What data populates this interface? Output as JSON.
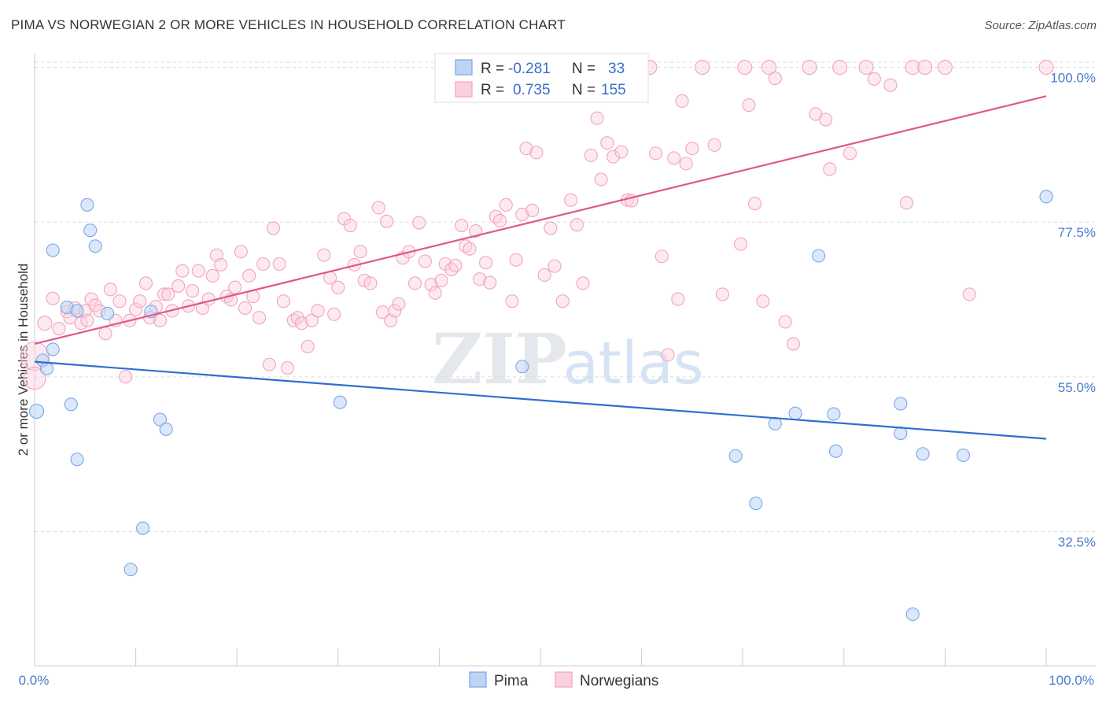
{
  "title": "PIMA VS NORWEGIAN 2 OR MORE VEHICLES IN HOUSEHOLD CORRELATION CHART",
  "source": "Source: ZipAtlas.com",
  "watermark": {
    "zip": "ZIP",
    "atlas": "atlas"
  },
  "colors": {
    "pima": "#7aa6e8",
    "pima_line": "#2f6fcf",
    "norwegian": "#f1a3bd",
    "norwegian_line": "#e0578a",
    "tick": "#4a7bd0"
  },
  "legend": {
    "rows": [
      {
        "r_label": "R =",
        "r_value": "-0.281",
        "n_label": "N =",
        "n_value": "33"
      },
      {
        "r_label": "R =",
        "r_value": "0.735",
        "n_label": "N =",
        "n_value": "155"
      }
    ]
  },
  "bottom_legend": {
    "pima": "Pima",
    "norwegians": "Norwegians"
  },
  "chart_data": {
    "type": "scatter",
    "title": "PIMA VS NORWEGIAN 2 OR MORE VEHICLES IN HOUSEHOLD CORRELATION CHART",
    "xlabel": "",
    "ylabel": "2 or more Vehicles in Household",
    "xlim": [
      0,
      100
    ],
    "ylim": [
      13,
      102
    ],
    "x_tick_labels": [
      "0.0%",
      "100.0%"
    ],
    "y_ticks": [
      32.5,
      55.0,
      77.5,
      100.0
    ],
    "y_tick_labels": [
      "32.5%",
      "55.0%",
      "77.5%",
      "100.0%"
    ],
    "grid": "horizontal dashed",
    "legend_position": "top-center",
    "series": [
      {
        "name": "Pima",
        "trend": {
          "x": [
            0,
            100
          ],
          "y": [
            57.2,
            46.0
          ]
        },
        "points": [
          [
            0.2,
            50.0,
            9
          ],
          [
            0.8,
            57.4,
            8
          ],
          [
            1.8,
            59.0,
            8
          ],
          [
            1.2,
            56.2,
            8
          ],
          [
            3.2,
            65.1,
            8
          ],
          [
            3.6,
            51.0,
            8
          ],
          [
            4.2,
            64.6,
            8
          ],
          [
            4.2,
            43.0,
            8
          ],
          [
            5.2,
            80.0,
            8
          ],
          [
            5.5,
            76.3,
            8
          ],
          [
            6.0,
            74.0,
            8
          ],
          [
            1.8,
            73.4,
            8
          ],
          [
            7.2,
            64.2,
            8
          ],
          [
            9.5,
            27.0,
            8
          ],
          [
            10.7,
            33.0,
            8
          ],
          [
            11.5,
            64.5,
            8
          ],
          [
            12.4,
            48.8,
            8
          ],
          [
            13.0,
            47.4,
            8
          ],
          [
            30.2,
            51.3,
            8
          ],
          [
            48.2,
            56.5,
            8
          ],
          [
            69.3,
            43.5,
            8
          ],
          [
            71.3,
            36.6,
            8
          ],
          [
            73.2,
            48.2,
            8
          ],
          [
            75.2,
            49.7,
            8
          ],
          [
            77.5,
            72.6,
            8
          ],
          [
            79.2,
            44.2,
            8
          ],
          [
            79.0,
            49.6,
            8
          ],
          [
            85.6,
            46.8,
            8
          ],
          [
            85.6,
            51.1,
            8
          ],
          [
            86.8,
            20.5,
            8
          ],
          [
            87.8,
            43.8,
            8
          ],
          [
            91.8,
            43.6,
            8
          ],
          [
            100.0,
            81.2,
            8
          ]
        ]
      },
      {
        "name": "Norwegians",
        "trend": {
          "x": [
            0,
            100
          ],
          "y": [
            59.8,
            95.8
          ]
        },
        "points": [
          [
            0.0,
            58.0,
            18
          ],
          [
            0.0,
            54.8,
            14
          ],
          [
            1.0,
            62.8,
            9
          ],
          [
            1.8,
            66.4,
            8
          ],
          [
            2.4,
            62.0,
            8
          ],
          [
            3.2,
            64.5,
            8
          ],
          [
            3.5,
            63.6,
            8
          ],
          [
            4.0,
            65.0,
            8
          ],
          [
            4.6,
            62.8,
            8
          ],
          [
            5.0,
            64.6,
            8
          ],
          [
            5.2,
            63.2,
            8
          ],
          [
            5.6,
            66.3,
            8
          ],
          [
            6.0,
            65.4,
            8
          ],
          [
            6.4,
            64.6,
            8
          ],
          [
            7.0,
            61.3,
            8
          ],
          [
            7.5,
            67.7,
            8
          ],
          [
            8.0,
            63.2,
            8
          ],
          [
            8.4,
            66.0,
            8
          ],
          [
            9.0,
            55.0,
            8
          ],
          [
            9.4,
            63.2,
            8
          ],
          [
            10.0,
            64.8,
            8
          ],
          [
            10.4,
            66.0,
            8
          ],
          [
            11.0,
            68.6,
            8
          ],
          [
            11.4,
            63.6,
            8
          ],
          [
            12.0,
            65.2,
            8
          ],
          [
            12.4,
            63.2,
            8
          ],
          [
            12.8,
            67.0,
            8
          ],
          [
            13.2,
            67.0,
            8
          ],
          [
            13.6,
            64.6,
            8
          ],
          [
            14.2,
            68.2,
            8
          ],
          [
            14.6,
            70.4,
            8
          ],
          [
            15.2,
            65.3,
            8
          ],
          [
            15.6,
            67.5,
            8
          ],
          [
            16.2,
            70.4,
            8
          ],
          [
            16.6,
            65.0,
            8
          ],
          [
            17.2,
            66.3,
            8
          ],
          [
            17.6,
            69.7,
            8
          ],
          [
            18.0,
            72.7,
            8
          ],
          [
            18.4,
            71.3,
            8
          ],
          [
            19.0,
            66.7,
            8
          ],
          [
            19.4,
            66.2,
            8
          ],
          [
            19.8,
            68.0,
            8
          ],
          [
            20.4,
            73.2,
            8
          ],
          [
            20.8,
            65.0,
            8
          ],
          [
            21.2,
            69.7,
            8
          ],
          [
            21.6,
            66.7,
            8
          ],
          [
            22.2,
            63.6,
            8
          ],
          [
            22.6,
            71.4,
            8
          ],
          [
            23.2,
            56.8,
            8
          ],
          [
            23.6,
            76.6,
            8
          ],
          [
            24.2,
            71.4,
            8
          ],
          [
            24.6,
            66.0,
            8
          ],
          [
            25.0,
            56.3,
            8
          ],
          [
            25.6,
            63.2,
            8
          ],
          [
            26.0,
            63.6,
            8
          ],
          [
            26.4,
            62.8,
            8
          ],
          [
            27.0,
            59.4,
            8
          ],
          [
            27.4,
            63.2,
            8
          ],
          [
            28.0,
            64.6,
            8
          ],
          [
            28.6,
            72.7,
            8
          ],
          [
            29.2,
            69.4,
            8
          ],
          [
            29.6,
            64.1,
            8
          ],
          [
            30.0,
            68.0,
            8
          ],
          [
            30.6,
            78.0,
            8
          ],
          [
            31.2,
            77.0,
            8
          ],
          [
            31.6,
            71.3,
            8
          ],
          [
            32.2,
            73.2,
            8
          ],
          [
            32.6,
            69.0,
            8
          ],
          [
            33.2,
            68.6,
            8
          ],
          [
            34.0,
            79.6,
            8
          ],
          [
            34.4,
            64.4,
            8
          ],
          [
            34.8,
            77.6,
            8
          ],
          [
            35.2,
            63.2,
            8
          ],
          [
            35.6,
            64.6,
            8
          ],
          [
            36.0,
            65.6,
            8
          ],
          [
            36.4,
            72.3,
            8
          ],
          [
            37.0,
            73.2,
            8
          ],
          [
            37.6,
            68.6,
            8
          ],
          [
            38.0,
            77.4,
            8
          ],
          [
            38.6,
            71.8,
            8
          ],
          [
            39.2,
            68.4,
            8
          ],
          [
            39.6,
            67.2,
            8
          ],
          [
            40.2,
            69.0,
            8
          ],
          [
            40.6,
            71.4,
            8
          ],
          [
            41.2,
            70.6,
            8
          ],
          [
            41.6,
            71.2,
            8
          ],
          [
            42.2,
            77.0,
            8
          ],
          [
            42.6,
            74.0,
            8
          ],
          [
            43.0,
            73.6,
            8
          ],
          [
            43.6,
            76.2,
            8
          ],
          [
            44.0,
            69.2,
            8
          ],
          [
            44.6,
            71.6,
            8
          ],
          [
            45.0,
            68.7,
            8
          ],
          [
            45.6,
            78.3,
            8
          ],
          [
            46.0,
            77.7,
            8
          ],
          [
            46.6,
            80.0,
            8
          ],
          [
            47.2,
            66.0,
            8
          ],
          [
            47.6,
            72.0,
            8
          ],
          [
            48.2,
            78.6,
            8
          ],
          [
            48.6,
            88.2,
            8
          ],
          [
            49.2,
            79.2,
            8
          ],
          [
            49.6,
            87.6,
            8
          ],
          [
            50.4,
            69.8,
            8
          ],
          [
            51.0,
            76.6,
            8
          ],
          [
            51.4,
            71.1,
            8
          ],
          [
            52.2,
            66.0,
            8
          ],
          [
            53.0,
            80.7,
            8
          ],
          [
            53.6,
            77.1,
            8
          ],
          [
            54.2,
            68.6,
            8
          ],
          [
            55.0,
            87.2,
            8
          ],
          [
            55.6,
            92.6,
            8
          ],
          [
            56.0,
            83.7,
            8
          ],
          [
            56.6,
            89.0,
            8
          ],
          [
            57.2,
            87.0,
            8
          ],
          [
            58.0,
            87.7,
            8
          ],
          [
            58.6,
            80.7,
            8
          ],
          [
            59.0,
            80.6,
            8
          ],
          [
            59.6,
            100.0,
            9
          ],
          [
            60.8,
            100.0,
            9
          ],
          [
            61.4,
            87.5,
            8
          ],
          [
            62.0,
            72.5,
            8
          ],
          [
            62.6,
            58.2,
            8
          ],
          [
            63.2,
            86.8,
            8
          ],
          [
            63.6,
            66.3,
            8
          ],
          [
            64.0,
            95.1,
            8
          ],
          [
            64.4,
            86.0,
            8
          ],
          [
            65.0,
            88.2,
            8
          ],
          [
            66.0,
            100.0,
            9
          ],
          [
            67.2,
            88.7,
            8
          ],
          [
            68.0,
            67.0,
            8
          ],
          [
            69.8,
            74.3,
            8
          ],
          [
            70.2,
            100.0,
            9
          ],
          [
            70.6,
            94.5,
            8
          ],
          [
            71.2,
            80.2,
            8
          ],
          [
            72.0,
            66.0,
            8
          ],
          [
            72.6,
            100.0,
            9
          ],
          [
            73.2,
            98.4,
            8
          ],
          [
            74.2,
            63.0,
            8
          ],
          [
            75.0,
            59.8,
            8
          ],
          [
            76.6,
            100.0,
            9
          ],
          [
            77.2,
            93.2,
            8
          ],
          [
            78.2,
            92.4,
            8
          ],
          [
            78.6,
            85.2,
            8
          ],
          [
            79.6,
            100.0,
            9
          ],
          [
            80.6,
            87.5,
            8
          ],
          [
            82.2,
            100.0,
            9
          ],
          [
            83.0,
            98.3,
            8
          ],
          [
            84.6,
            97.4,
            8
          ],
          [
            86.8,
            100.0,
            9
          ],
          [
            86.2,
            80.3,
            8
          ],
          [
            88.0,
            100.0,
            9
          ],
          [
            90.0,
            100.0,
            9
          ],
          [
            92.4,
            67.0,
            8
          ],
          [
            100.0,
            100.0,
            9
          ]
        ]
      }
    ]
  }
}
